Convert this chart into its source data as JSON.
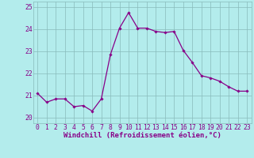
{
  "x": [
    0,
    1,
    2,
    3,
    4,
    5,
    6,
    7,
    8,
    9,
    10,
    11,
    12,
    13,
    14,
    15,
    16,
    17,
    18,
    19,
    20,
    21,
    22,
    23
  ],
  "y": [
    21.1,
    20.7,
    20.85,
    20.85,
    20.5,
    20.55,
    20.3,
    20.85,
    22.85,
    24.05,
    24.75,
    24.05,
    24.05,
    23.9,
    23.85,
    23.9,
    23.05,
    22.5,
    21.9,
    21.8,
    21.65,
    21.4,
    21.2,
    21.2
  ],
  "line_color": "#880088",
  "marker": "D",
  "marker_size": 1.8,
  "line_width": 0.9,
  "bg_color": "#b3ecec",
  "grid_color": "#88bbbb",
  "xlabel": "Windchill (Refroidissement éolien,°C)",
  "xlabel_fontsize": 6.5,
  "tick_fontsize": 5.8,
  "ylim": [
    19.75,
    25.25
  ],
  "xlim": [
    -0.5,
    23.5
  ],
  "yticks": [
    20,
    21,
    22,
    23,
    24,
    25
  ],
  "xticks": [
    0,
    1,
    2,
    3,
    4,
    5,
    6,
    7,
    8,
    9,
    10,
    11,
    12,
    13,
    14,
    15,
    16,
    17,
    18,
    19,
    20,
    21,
    22,
    23
  ]
}
